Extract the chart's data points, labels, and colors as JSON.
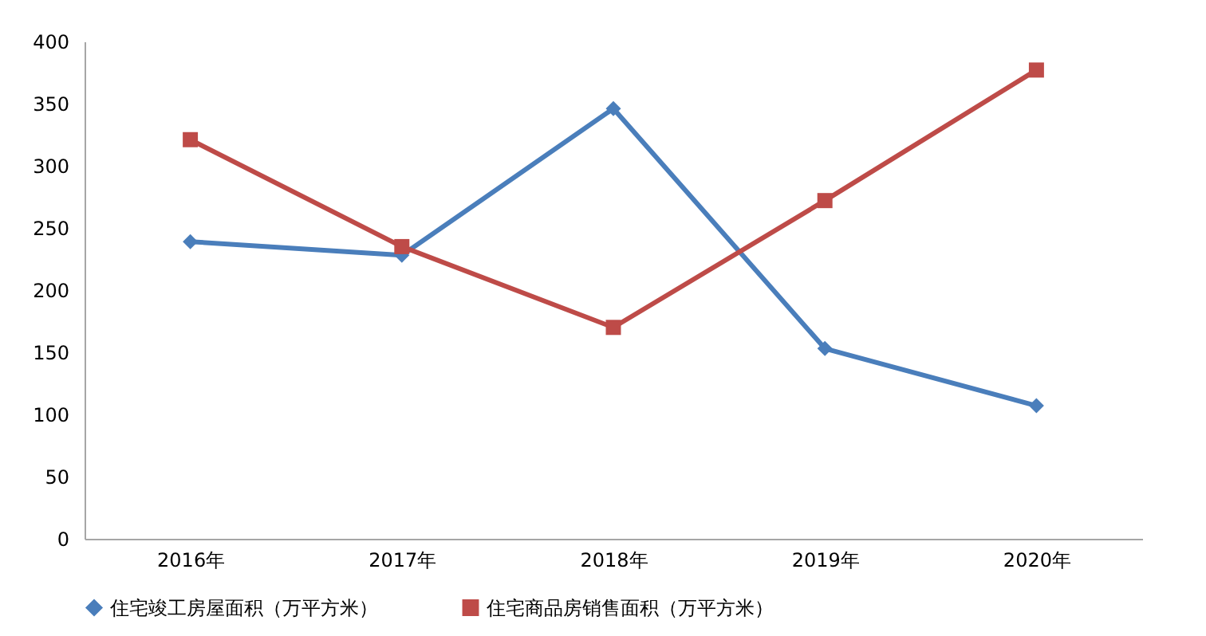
{
  "chart_data": {
    "type": "line",
    "categories": [
      "2016年",
      "2017年",
      "2018年",
      "2019年",
      "2020年"
    ],
    "series": [
      {
        "name": "住宅竣工房屋面积（万平方米）",
        "color": "#4a7ebb",
        "marker": "diamond",
        "values": [
          239,
          228,
          346,
          153,
          107
        ]
      },
      {
        "name": "住宅商品房销售面积（万平方米）",
        "color": "#be4b48",
        "marker": "square",
        "values": [
          321,
          235,
          170,
          272,
          377
        ]
      }
    ],
    "ylim": [
      0,
      400
    ],
    "yticks": [
      0,
      50,
      100,
      150,
      200,
      250,
      300,
      350,
      400
    ],
    "grid": false,
    "legend": "bottom",
    "line_style": "solid"
  }
}
